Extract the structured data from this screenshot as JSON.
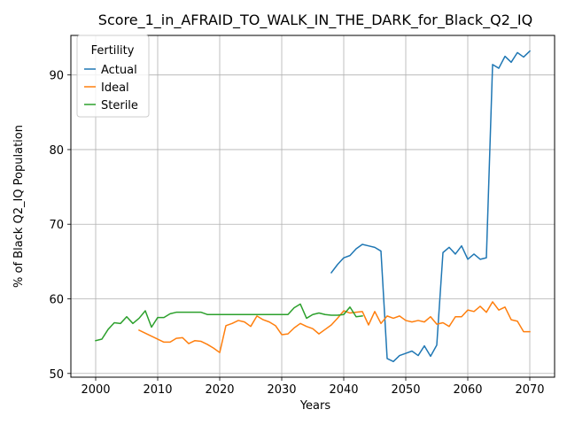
{
  "chart_data": {
    "type": "line",
    "title": "Score_1_in_AFRAID_TO_WALK_IN_THE_DARK_for_Black_Q2_IQ",
    "xlabel": "Years",
    "ylabel": "% of Black Q2_IQ Population",
    "xlim": [
      1996,
      2074
    ],
    "ylim": [
      49.5,
      95.3
    ],
    "xticks": [
      2000,
      2010,
      2020,
      2030,
      2040,
      2050,
      2060,
      2070
    ],
    "yticks": [
      50,
      60,
      70,
      80,
      90
    ],
    "grid": true,
    "legend": {
      "title": "Fertility",
      "placement": "top-left"
    },
    "series": [
      {
        "name": "Actual",
        "color": "#1f77b4",
        "x": [
          2038,
          2039,
          2040,
          2041,
          2042,
          2043,
          2044,
          2045,
          2046,
          2047,
          2048,
          2049,
          2050,
          2051,
          2052,
          2053,
          2054,
          2055,
          2056,
          2057,
          2058,
          2059,
          2060,
          2061,
          2062,
          2063,
          2064,
          2065,
          2066,
          2067,
          2068,
          2069,
          2070
        ],
        "y": [
          63.5,
          64.6,
          65.5,
          65.8,
          66.7,
          67.3,
          67.1,
          66.9,
          66.4,
          52.0,
          51.6,
          52.4,
          52.7,
          53.0,
          52.4,
          53.7,
          52.3,
          53.8,
          66.2,
          66.9,
          66.0,
          67.1,
          65.3,
          66.0,
          65.3,
          65.5,
          91.4,
          90.9,
          92.5,
          91.7,
          93.0,
          92.4,
          93.2
        ]
      },
      {
        "name": "Ideal",
        "color": "#ff7f0e",
        "x": [
          2007,
          2008,
          2009,
          2010,
          2011,
          2012,
          2013,
          2014,
          2015,
          2016,
          2017,
          2018,
          2019,
          2020,
          2021,
          2022,
          2023,
          2024,
          2025,
          2026,
          2027,
          2028,
          2029,
          2030,
          2031,
          2032,
          2033,
          2034,
          2035,
          2036,
          2037,
          2038,
          2039,
          2040,
          2041,
          2042,
          2043,
          2044,
          2045,
          2046,
          2047,
          2048,
          2049,
          2050,
          2051,
          2052,
          2053,
          2054,
          2055,
          2056,
          2057,
          2058,
          2059,
          2060,
          2061,
          2062,
          2063,
          2064,
          2065,
          2066,
          2067,
          2068,
          2069,
          2070
        ],
        "y": [
          55.8,
          55.4,
          55.0,
          54.6,
          54.2,
          54.2,
          54.7,
          54.8,
          54.0,
          54.4,
          54.3,
          53.9,
          53.4,
          52.8,
          56.4,
          56.7,
          57.1,
          56.9,
          56.3,
          57.7,
          57.2,
          56.9,
          56.4,
          55.2,
          55.3,
          56.1,
          56.7,
          56.3,
          56.0,
          55.3,
          55.9,
          56.5,
          57.4,
          58.4,
          58.1,
          58.2,
          58.3,
          56.5,
          58.3,
          56.7,
          57.7,
          57.4,
          57.7,
          57.1,
          56.9,
          57.1,
          56.9,
          57.6,
          56.6,
          56.8,
          56.3,
          57.6,
          57.6,
          58.5,
          58.3,
          59.0,
          58.2,
          59.6,
          58.5,
          58.9,
          57.2,
          57.0,
          55.6,
          55.6
        ]
      },
      {
        "name": "Sterile",
        "color": "#2ca02c",
        "x": [
          2000,
          2001,
          2002,
          2003,
          2004,
          2005,
          2006,
          2007,
          2008,
          2009,
          2010,
          2011,
          2012,
          2013,
          2014,
          2015,
          2016,
          2017,
          2018,
          2019,
          2020,
          2021,
          2022,
          2023,
          2024,
          2025,
          2026,
          2027,
          2028,
          2029,
          2030,
          2031,
          2032,
          2033,
          2034,
          2035,
          2036,
          2037,
          2038,
          2039,
          2040,
          2041,
          2042,
          2043
        ],
        "y": [
          54.4,
          54.6,
          55.9,
          56.8,
          56.7,
          57.6,
          56.7,
          57.4,
          58.4,
          56.2,
          57.5,
          57.5,
          58.0,
          58.2,
          58.2,
          58.2,
          58.2,
          58.2,
          57.9,
          57.9,
          57.9,
          57.9,
          57.9,
          57.9,
          57.9,
          57.9,
          57.9,
          57.9,
          57.9,
          57.9,
          57.9,
          57.9,
          58.8,
          59.3,
          57.4,
          57.9,
          58.1,
          57.9,
          57.8,
          57.8,
          57.9,
          58.9,
          57.6,
          57.7
        ]
      }
    ]
  }
}
